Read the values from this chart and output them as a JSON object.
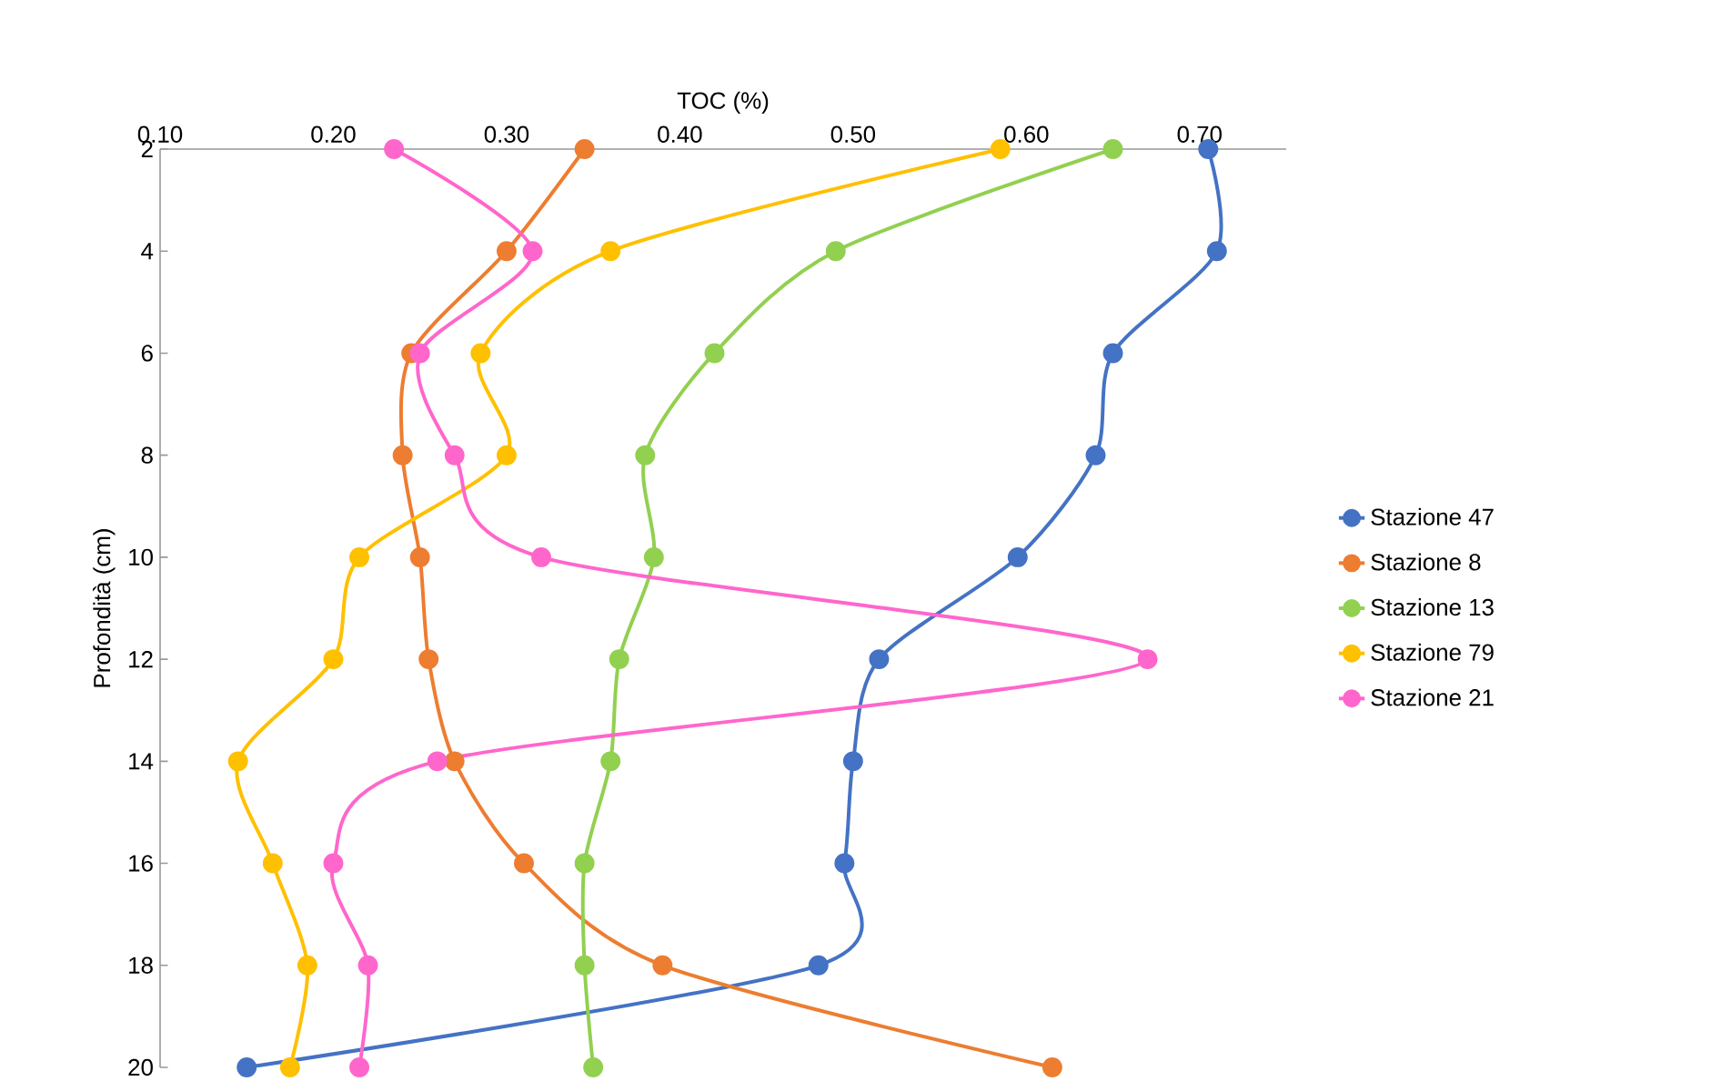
{
  "chart_data": {
    "type": "line",
    "xlabel": "TOC (%)",
    "ylabel": "Profondità (cm)",
    "series": [
      {
        "name": "Stazione 47",
        "color": "#4472c4",
        "x": [
          0.705,
          0.71,
          0.65,
          0.64,
          0.595,
          0.515,
          0.5,
          0.495,
          0.48,
          0.15
        ],
        "values": [
          2,
          4,
          6,
          8,
          10,
          12,
          14,
          16,
          18,
          20
        ]
      },
      {
        "name": "Stazione 8",
        "color": "#ed7d31",
        "x": [
          0.345,
          0.3,
          0.245,
          0.24,
          0.25,
          0.255,
          0.27,
          0.31,
          0.39,
          0.615
        ],
        "values": [
          2,
          4,
          6,
          8,
          10,
          12,
          14,
          16,
          18,
          20
        ]
      },
      {
        "name": "Stazione 13",
        "color": "#92d050",
        "x": [
          0.65,
          0.49,
          0.42,
          0.38,
          0.385,
          0.365,
          0.36,
          0.345,
          0.345,
          0.35
        ],
        "values": [
          2,
          4,
          6,
          8,
          10,
          12,
          14,
          16,
          18,
          20
        ]
      },
      {
        "name": "Stazione 79",
        "color": "#ffc000",
        "x": [
          0.585,
          0.36,
          0.285,
          0.3,
          0.215,
          0.2,
          0.145,
          0.165,
          0.185,
          0.175
        ],
        "values": [
          2,
          4,
          6,
          8,
          10,
          12,
          14,
          16,
          18,
          20
        ]
      },
      {
        "name": "Stazione 21",
        "color": "#ff66cc",
        "x": [
          0.235,
          0.315,
          0.25,
          0.27,
          0.32,
          0.67,
          0.26,
          0.2,
          0.22,
          0.215
        ],
        "values": [
          2,
          4,
          6,
          8,
          10,
          12,
          14,
          16,
          18,
          20
        ]
      }
    ],
    "xlim": [
      0.1,
      0.75
    ],
    "xticks": [
      {
        "value": 0.1,
        "label": "0.10"
      },
      {
        "value": 0.2,
        "label": "0.20"
      },
      {
        "value": 0.3,
        "label": "0.30"
      },
      {
        "value": 0.4,
        "label": "0.40"
      },
      {
        "value": 0.5,
        "label": "0.50"
      },
      {
        "value": 0.6,
        "label": "0.60"
      },
      {
        "value": 0.7,
        "label": "0.70"
      }
    ],
    "ylim": [
      20,
      2
    ],
    "yticks": [
      2,
      4,
      6,
      8,
      10,
      12,
      14,
      16,
      18,
      20
    ],
    "grid": false,
    "legend": "right",
    "marker": "circle",
    "line_style": "solid"
  }
}
